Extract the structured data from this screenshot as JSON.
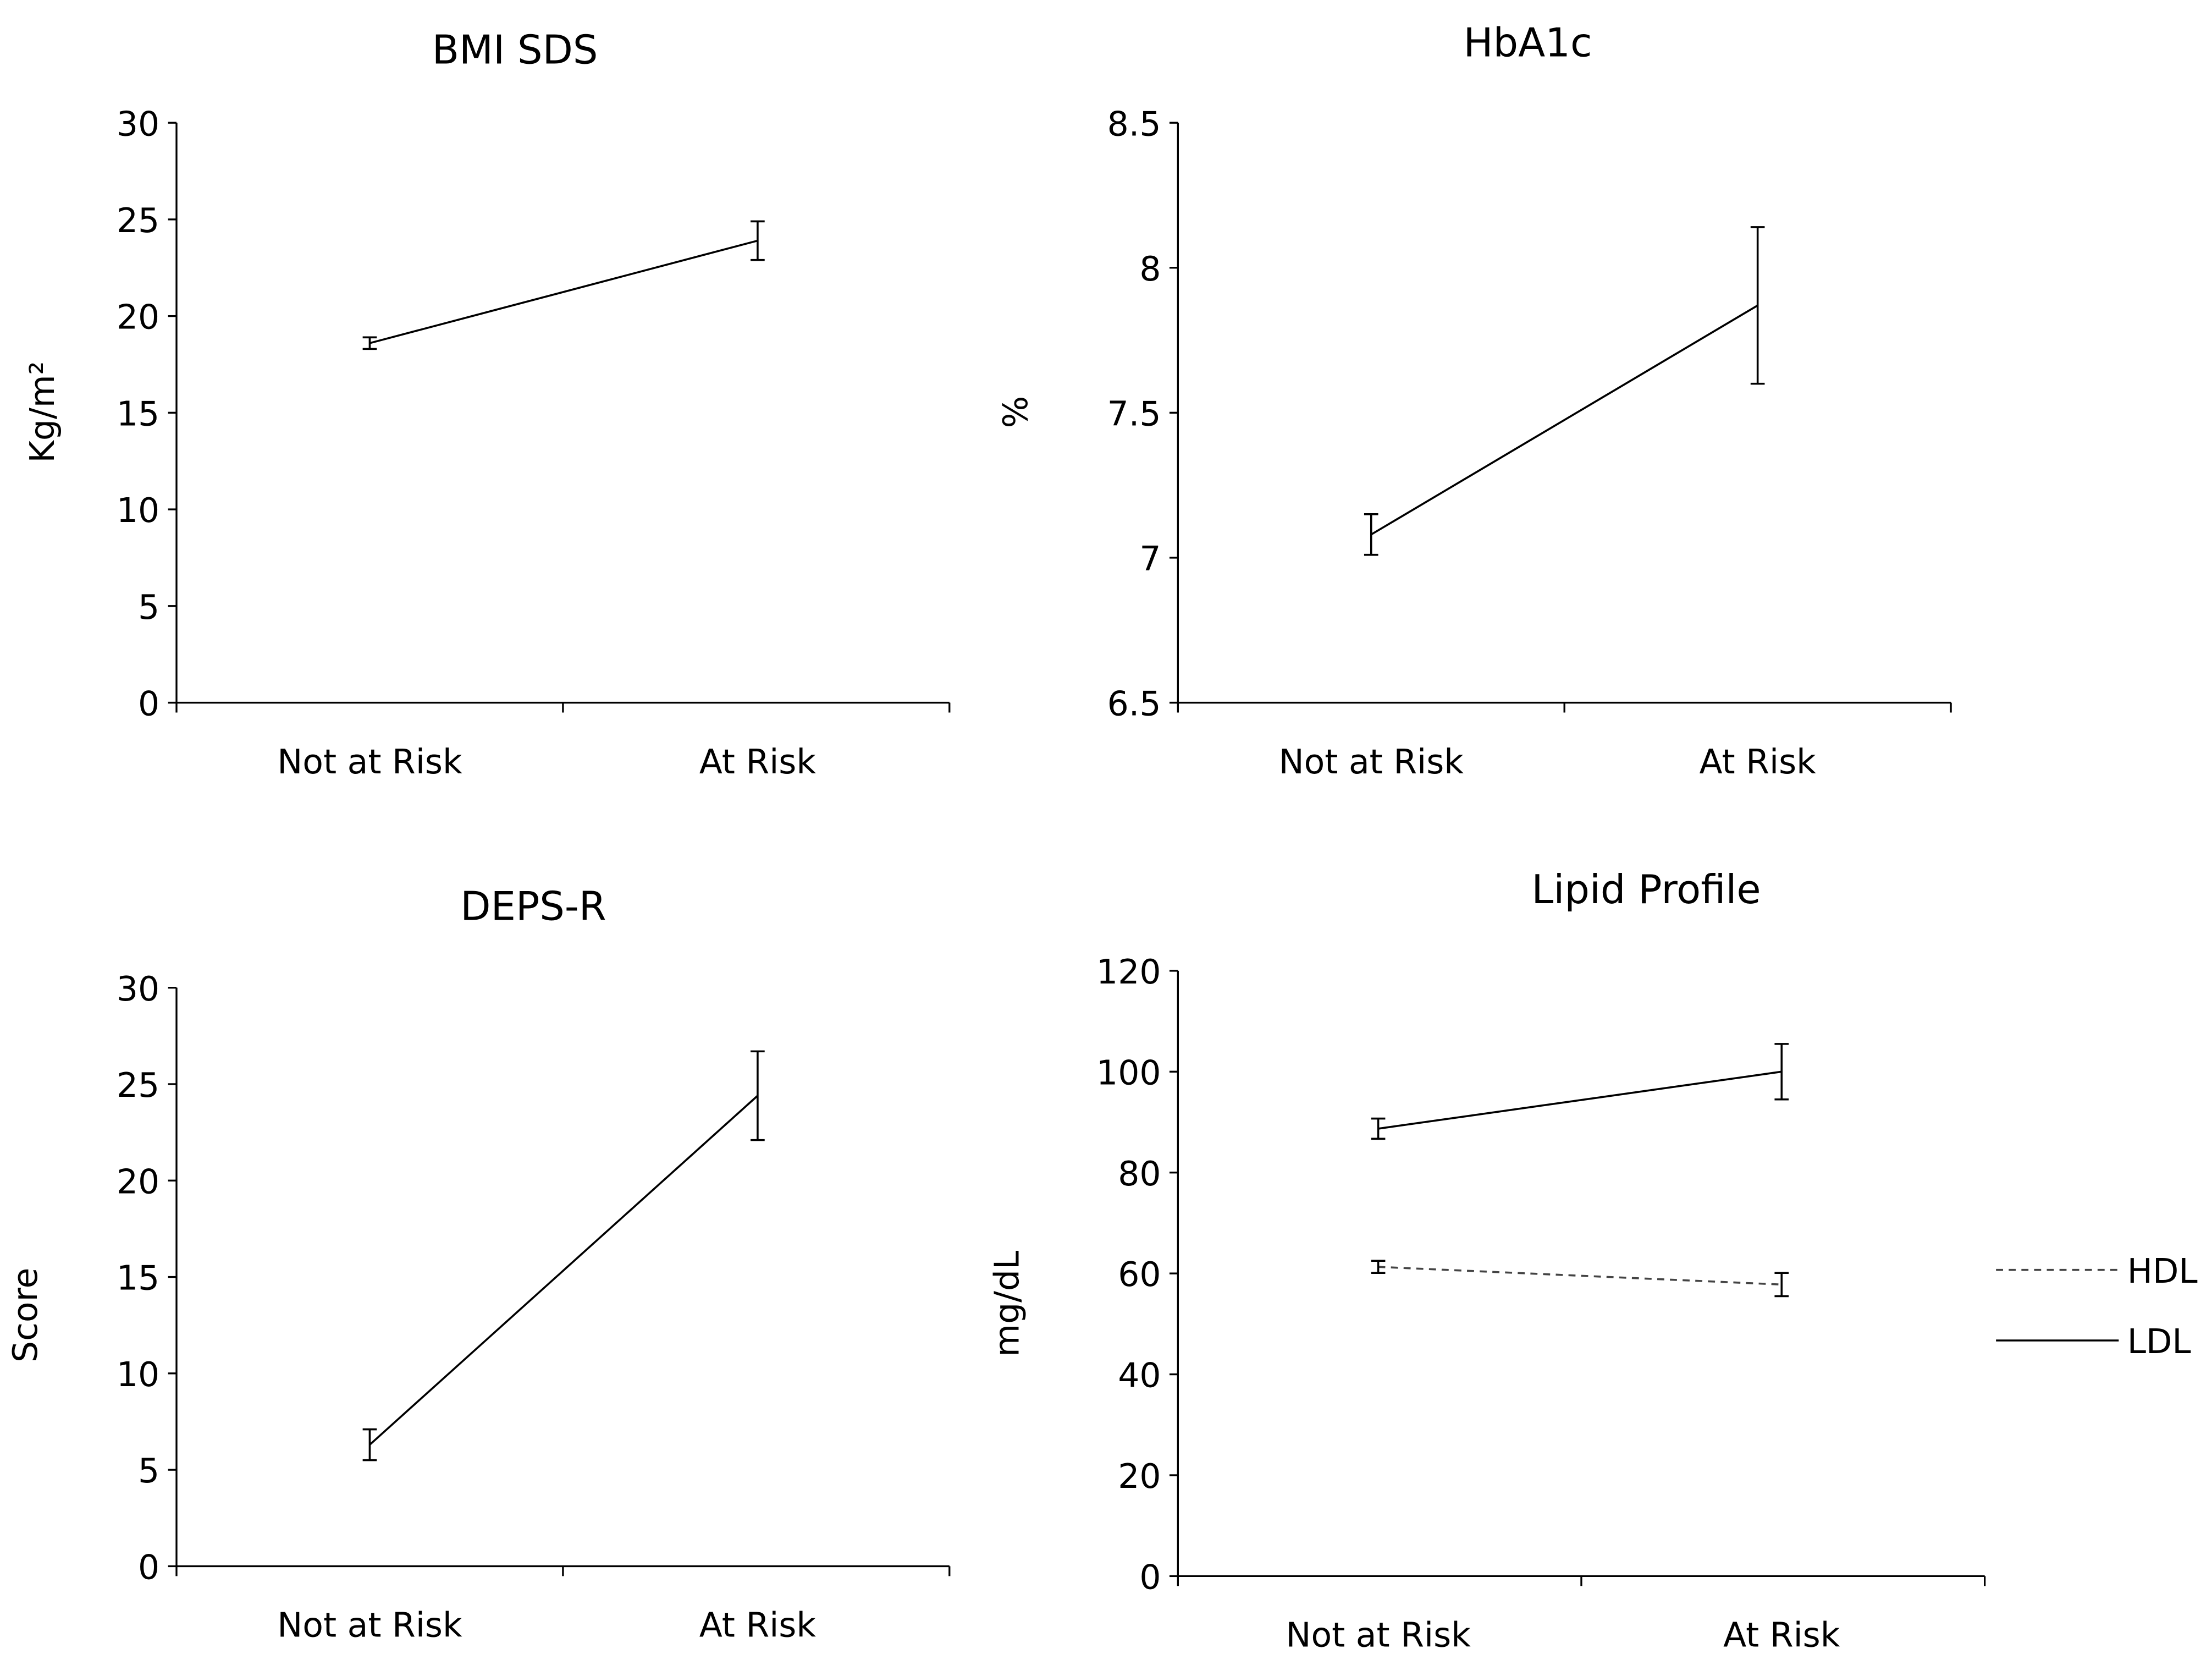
{
  "chart_data": [
    {
      "type": "line",
      "title": "BMI SDS",
      "ylabel": "Kg/m²",
      "xlabel": "",
      "categories": [
        "Not at Risk",
        "At Risk"
      ],
      "ylim": [
        0,
        30
      ],
      "yticks": [
        0,
        5,
        10,
        15,
        20,
        25,
        30
      ],
      "series": [
        {
          "name": "BMI SDS",
          "style": "solid",
          "values": [
            18.6,
            23.9
          ],
          "errors": [
            0.3,
            1.0
          ]
        }
      ]
    },
    {
      "type": "line",
      "title": "HbA1c",
      "ylabel": "%",
      "xlabel": "",
      "categories": [
        "Not at Risk",
        "At Risk"
      ],
      "ylim": [
        6.5,
        8.5
      ],
      "yticks": [
        6.5,
        7,
        7.5,
        8,
        8.5
      ],
      "series": [
        {
          "name": "HbA1c",
          "style": "solid",
          "values": [
            7.08,
            7.87
          ],
          "errors": [
            0.07,
            0.27
          ]
        }
      ]
    },
    {
      "type": "line",
      "title": "DEPS-R",
      "ylabel": "Score",
      "xlabel": "",
      "categories": [
        "Not at Risk",
        "At Risk"
      ],
      "ylim": [
        0,
        30
      ],
      "yticks": [
        0,
        5,
        10,
        15,
        20,
        25,
        30
      ],
      "series": [
        {
          "name": "DEPS-R",
          "style": "solid",
          "values": [
            6.3,
            24.4
          ],
          "errors": [
            0.8,
            2.3
          ]
        }
      ]
    },
    {
      "type": "line",
      "title": "Lipid Profile",
      "ylabel": "mg/dL",
      "xlabel": "",
      "categories": [
        "Not at Risk",
        "At Risk"
      ],
      "ylim": [
        0,
        120
      ],
      "yticks": [
        0,
        20,
        40,
        60,
        80,
        100,
        120
      ],
      "legend": "right",
      "series": [
        {
          "name": "HDL",
          "style": "dashed",
          "values": [
            61.3,
            57.8
          ],
          "errors": [
            1.2,
            2.3
          ]
        },
        {
          "name": "LDL",
          "style": "solid",
          "values": [
            88.7,
            100
          ],
          "errors": [
            2.0,
            5.5
          ]
        }
      ]
    }
  ]
}
